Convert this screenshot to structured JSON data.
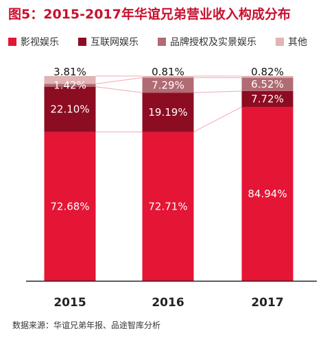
{
  "title": "图5：2015-2017年华谊兄弟营业收入构成分布",
  "source": "数据来源：华谊兄弟年报、品途智库分析",
  "chart_data": {
    "type": "bar",
    "stacked": true,
    "percent": true,
    "categories": [
      "2015",
      "2016",
      "2017"
    ],
    "series": [
      {
        "name": "影视娱乐",
        "color": "#e41535",
        "values": [
          72.68,
          72.71,
          84.94
        ],
        "labels": [
          "72.68%",
          "72.71%",
          "84.94%"
        ]
      },
      {
        "name": "互联网娱乐",
        "color": "#8c0c22",
        "values": [
          22.1,
          19.19,
          7.72
        ],
        "labels": [
          "22.10%",
          "19.19%",
          "7.72%"
        ]
      },
      {
        "name": "品牌授权及实景娱乐",
        "color": "#b06b73",
        "values": [
          1.42,
          7.29,
          6.52
        ],
        "labels": [
          "1.42%",
          "7.29%",
          "6.52%"
        ]
      },
      {
        "name": "其他",
        "color": "#e0b3b5",
        "values": [
          3.81,
          0.81,
          0.82
        ],
        "labels": [
          "3.81%",
          "0.81%",
          "0.82%"
        ]
      }
    ],
    "ylim": [
      0,
      100
    ],
    "legend_position": "top",
    "series_lines": true,
    "grid": false
  }
}
